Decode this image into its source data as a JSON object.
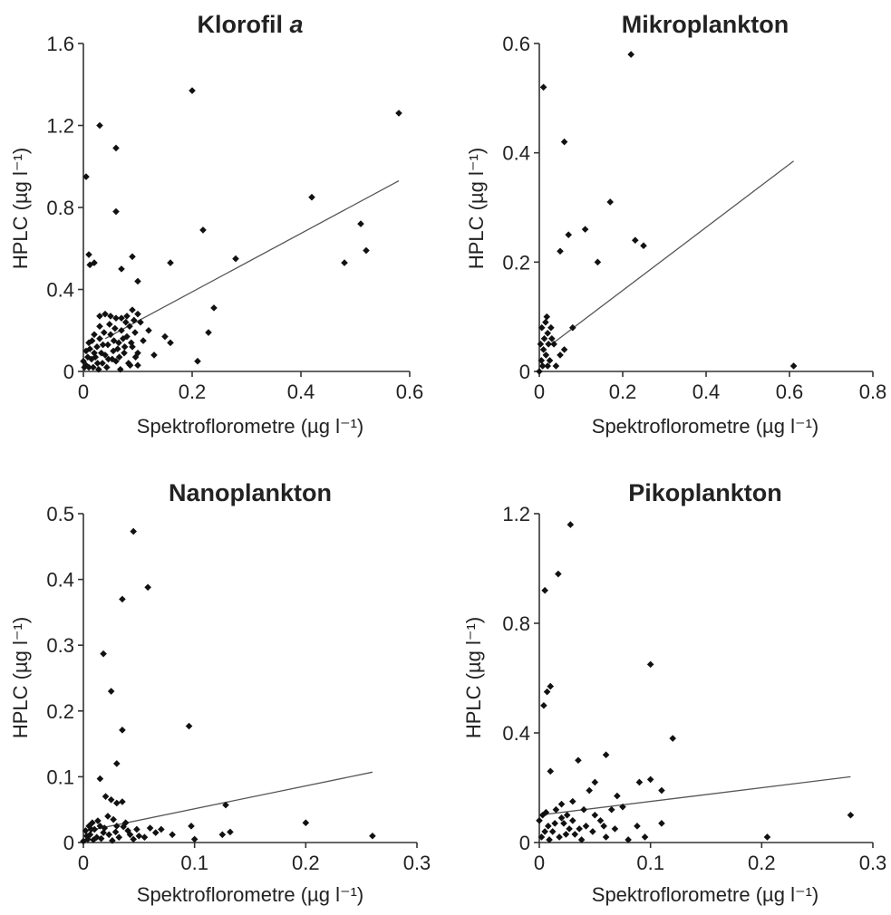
{
  "chart_data": [
    {
      "type": "scatter",
      "title": "Klorofil a",
      "title_main": "Klorofil",
      "title_italic": "a",
      "xlabel": "Spektroflorometre (µg l⁻¹)",
      "ylabel": "HPLC (µg l⁻¹)",
      "xlim": [
        0,
        0.6
      ],
      "ylim": [
        0,
        1.6
      ],
      "xticks": [
        0,
        0.2,
        0.4,
        0.6
      ],
      "yticks": [
        0,
        0.4,
        0.8,
        1.2,
        1.6
      ],
      "xtick_labels": [
        "0",
        "0.2",
        "0.4",
        "0.6"
      ],
      "ytick_labels": [
        "0",
        "0.4",
        "0.8",
        "1.2",
        "1.6"
      ],
      "grid": false,
      "regression_line": [
        [
          0.04,
          0.16
        ],
        [
          0.58,
          0.93
        ]
      ],
      "points": [
        [
          0.005,
          0.95
        ],
        [
          0.01,
          0.57
        ],
        [
          0.012,
          0.52
        ],
        [
          0.02,
          0.53
        ],
        [
          0.03,
          1.2
        ],
        [
          0.06,
          1.09
        ],
        [
          0.06,
          0.78
        ],
        [
          0.07,
          0.5
        ],
        [
          0.09,
          0.56
        ],
        [
          0.1,
          0.44
        ],
        [
          0.2,
          1.37
        ],
        [
          0.22,
          0.69
        ],
        [
          0.16,
          0.53
        ],
        [
          0.28,
          0.55
        ],
        [
          0.42,
          0.85
        ],
        [
          0.51,
          0.72
        ],
        [
          0.52,
          0.59
        ],
        [
          0.48,
          0.53
        ],
        [
          0.58,
          1.26
        ],
        [
          0.24,
          0.31
        ],
        [
          0.23,
          0.19
        ],
        [
          0.21,
          0.05
        ],
        [
          0.15,
          0.17
        ],
        [
          0.16,
          0.14
        ],
        [
          0.12,
          0.2
        ],
        [
          0.13,
          0.08
        ],
        [
          0.1,
          0.28
        ],
        [
          0.09,
          0.3
        ],
        [
          0.08,
          0.27
        ],
        [
          0.07,
          0.26
        ],
        [
          0.06,
          0.26
        ],
        [
          0.05,
          0.27
        ],
        [
          0.04,
          0.28
        ],
        [
          0.03,
          0.27
        ],
        [
          0.03,
          0.22
        ],
        [
          0.02,
          0.18
        ],
        [
          0.01,
          0.14
        ],
        [
          0.005,
          0.1
        ],
        [
          0.0,
          0.05
        ],
        [
          0.002,
          0.02
        ],
        [
          0.01,
          0.02
        ],
        [
          0.015,
          0.06
        ],
        [
          0.02,
          0.09
        ],
        [
          0.025,
          0.12
        ],
        [
          0.03,
          0.16
        ],
        [
          0.035,
          0.04
        ],
        [
          0.04,
          0.08
        ],
        [
          0.045,
          0.13
        ],
        [
          0.05,
          0.18
        ],
        [
          0.055,
          0.1
        ],
        [
          0.06,
          0.05
        ],
        [
          0.065,
          0.14
        ],
        [
          0.07,
          0.2
        ],
        [
          0.075,
          0.09
        ],
        [
          0.08,
          0.17
        ],
        [
          0.085,
          0.22
        ],
        [
          0.09,
          0.12
        ],
        [
          0.095,
          0.19
        ],
        [
          0.1,
          0.03
        ],
        [
          0.105,
          0.24
        ],
        [
          0.11,
          0.15
        ],
        [
          0.005,
          0.03
        ],
        [
          0.012,
          0.11
        ],
        [
          0.018,
          0.02
        ],
        [
          0.022,
          0.07
        ],
        [
          0.028,
          0.01
        ],
        [
          0.033,
          0.09
        ],
        [
          0.038,
          0.19
        ],
        [
          0.043,
          0.02
        ],
        [
          0.048,
          0.23
        ],
        [
          0.053,
          0.06
        ],
        [
          0.058,
          0.21
        ],
        [
          0.063,
          0.11
        ],
        [
          0.068,
          0.01
        ],
        [
          0.073,
          0.16
        ],
        [
          0.078,
          0.24
        ],
        [
          0.083,
          0.04
        ],
        [
          0.088,
          0.14
        ],
        [
          0.093,
          0.25
        ],
        [
          0.1,
          0.09
        ],
        [
          0.008,
          0.07
        ],
        [
          0.016,
          0.15
        ],
        [
          0.026,
          0.04
        ],
        [
          0.036,
          0.13
        ],
        [
          0.046,
          0.06
        ],
        [
          0.056,
          0.15
        ],
        [
          0.066,
          0.07
        ],
        [
          0.076,
          0.12
        ],
        [
          0.086,
          0.03
        ],
        [
          0.096,
          0.07
        ]
      ]
    },
    {
      "type": "scatter",
      "title": "Mikroplankton",
      "xlabel": "Spektroflorometre (µg l⁻¹)",
      "ylabel": "HPLC (µg l⁻¹)",
      "xlim": [
        0,
        0.8
      ],
      "ylim": [
        0,
        0.6
      ],
      "xticks": [
        0,
        0.2,
        0.4,
        0.6,
        0.8
      ],
      "yticks": [
        0,
        0.2,
        0.4,
        0.6
      ],
      "xtick_labels": [
        "0",
        "0.2",
        "0.4",
        "0.6",
        "0.8"
      ],
      "ytick_labels": [
        "0",
        "0.2",
        "0.4",
        "0.6"
      ],
      "grid": false,
      "regression_line": [
        [
          0.03,
          0.05
        ],
        [
          0.61,
          0.385
        ]
      ],
      "points": [
        [
          0.01,
          0.52
        ],
        [
          0.22,
          0.58
        ],
        [
          0.06,
          0.42
        ],
        [
          0.17,
          0.31
        ],
        [
          0.11,
          0.26
        ],
        [
          0.07,
          0.25
        ],
        [
          0.05,
          0.22
        ],
        [
          0.23,
          0.24
        ],
        [
          0.25,
          0.23
        ],
        [
          0.14,
          0.2
        ],
        [
          0.61,
          0.01
        ],
        [
          0.08,
          0.08
        ],
        [
          0.06,
          0.04
        ],
        [
          0.05,
          0.03
        ],
        [
          0.04,
          0.01
        ],
        [
          0.0,
          0.0
        ],
        [
          0.005,
          0.02
        ],
        [
          0.01,
          0.04
        ],
        [
          0.012,
          0.06
        ],
        [
          0.015,
          0.09
        ],
        [
          0.018,
          0.1
        ],
        [
          0.02,
          0.07
        ],
        [
          0.022,
          0.05
        ],
        [
          0.025,
          0.02
        ],
        [
          0.028,
          0.08
        ],
        [
          0.03,
          0.06
        ],
        [
          0.008,
          0.01
        ],
        [
          0.003,
          0.05
        ],
        [
          0.006,
          0.08
        ],
        [
          0.016,
          0.03
        ],
        [
          0.035,
          0.05
        ],
        [
          0.02,
          0.01
        ]
      ]
    },
    {
      "type": "scatter",
      "title": "Nanoplankton",
      "xlabel": "Spektroflorometre (µg l⁻¹)",
      "ylabel": "HPLC (µg l⁻¹)",
      "xlim": [
        0,
        0.3
      ],
      "ylim": [
        0,
        0.5
      ],
      "xticks": [
        0,
        0.1,
        0.2,
        0.3
      ],
      "yticks": [
        0,
        0.1,
        0.2,
        0.3,
        0.4,
        0.5
      ],
      "xtick_labels": [
        "0",
        "0.1",
        "0.2",
        "0.3"
      ],
      "ytick_labels": [
        "0",
        "0.1",
        "0.2",
        "0.3",
        "0.4",
        "0.5"
      ],
      "grid": false,
      "regression_line": [
        [
          0.01,
          0.02
        ],
        [
          0.26,
          0.107
        ]
      ],
      "points": [
        [
          0.045,
          0.473
        ],
        [
          0.058,
          0.388
        ],
        [
          0.035,
          0.37
        ],
        [
          0.018,
          0.287
        ],
        [
          0.025,
          0.23
        ],
        [
          0.035,
          0.171
        ],
        [
          0.03,
          0.12
        ],
        [
          0.095,
          0.177
        ],
        [
          0.015,
          0.097
        ],
        [
          0.02,
          0.07
        ],
        [
          0.025,
          0.065
        ],
        [
          0.03,
          0.06
        ],
        [
          0.035,
          0.062
        ],
        [
          0.128,
          0.057
        ],
        [
          0.2,
          0.03
        ],
        [
          0.26,
          0.01
        ],
        [
          0.097,
          0.025
        ],
        [
          0.125,
          0.012
        ],
        [
          0.132,
          0.016
        ],
        [
          0.07,
          0.02
        ],
        [
          0.06,
          0.022
        ],
        [
          0.05,
          0.01
        ],
        [
          0.045,
          0.005
        ],
        [
          0.04,
          0.018
        ],
        [
          0.038,
          0.03
        ],
        [
          0.03,
          0.025
        ],
        [
          0.027,
          0.035
        ],
        [
          0.022,
          0.04
        ],
        [
          0.018,
          0.015
        ],
        [
          0.015,
          0.025
        ],
        [
          0.012,
          0.008
        ],
        [
          0.01,
          0.02
        ],
        [
          0.008,
          0.03
        ],
        [
          0.006,
          0.012
        ],
        [
          0.004,
          0.005
        ],
        [
          0.002,
          0.018
        ],
        [
          0.0,
          0.002
        ],
        [
          0.005,
          0.025
        ],
        [
          0.009,
          0.004
        ],
        [
          0.013,
          0.033
        ],
        [
          0.016,
          0.006
        ],
        [
          0.019,
          0.022
        ],
        [
          0.023,
          0.012
        ],
        [
          0.026,
          0.003
        ],
        [
          0.029,
          0.016
        ],
        [
          0.032,
          0.008
        ],
        [
          0.036,
          0.024
        ],
        [
          0.042,
          0.012
        ],
        [
          0.048,
          0.02
        ],
        [
          0.055,
          0.008
        ],
        [
          0.065,
          0.015
        ],
        [
          0.08,
          0.012
        ],
        [
          0.1,
          0.005
        ],
        [
          0.003,
          0.01
        ],
        [
          0.007,
          0.02
        ]
      ]
    },
    {
      "type": "scatter",
      "title": "Pikoplankton",
      "xlabel": "Spektroflorometre (µg l⁻¹)",
      "ylabel": "HPLC (µg l⁻¹)",
      "xlim": [
        0,
        0.3
      ],
      "ylim": [
        0,
        1.2
      ],
      "xticks": [
        0,
        0.1,
        0.2,
        0.3
      ],
      "yticks": [
        0,
        0.4,
        0.8,
        1.2
      ],
      "xtick_labels": [
        "0",
        "0.1",
        "0.2",
        "0.3"
      ],
      "ytick_labels": [
        "0",
        "0.4",
        "0.8",
        "1.2"
      ],
      "grid": false,
      "regression_line": [
        [
          0.0,
          0.1
        ],
        [
          0.28,
          0.24
        ]
      ],
      "points": [
        [
          0.028,
          1.16
        ],
        [
          0.017,
          0.98
        ],
        [
          0.005,
          0.92
        ],
        [
          0.01,
          0.57
        ],
        [
          0.007,
          0.55
        ],
        [
          0.004,
          0.5
        ],
        [
          0.1,
          0.65
        ],
        [
          0.12,
          0.38
        ],
        [
          0.06,
          0.32
        ],
        [
          0.035,
          0.3
        ],
        [
          0.01,
          0.26
        ],
        [
          0.1,
          0.23
        ],
        [
          0.09,
          0.22
        ],
        [
          0.05,
          0.22
        ],
        [
          0.045,
          0.19
        ],
        [
          0.11,
          0.19
        ],
        [
          0.07,
          0.17
        ],
        [
          0.03,
          0.15
        ],
        [
          0.02,
          0.14
        ],
        [
          0.075,
          0.13
        ],
        [
          0.065,
          0.12
        ],
        [
          0.28,
          0.1
        ],
        [
          0.04,
          0.12
        ],
        [
          0.015,
          0.12
        ],
        [
          0.025,
          0.1
        ],
        [
          0.006,
          0.11
        ],
        [
          0.003,
          0.1
        ],
        [
          0.0,
          0.08
        ],
        [
          0.008,
          0.06
        ],
        [
          0.012,
          0.04
        ],
        [
          0.018,
          0.02
        ],
        [
          0.022,
          0.07
        ],
        [
          0.027,
          0.05
        ],
        [
          0.032,
          0.03
        ],
        [
          0.038,
          0.01
        ],
        [
          0.042,
          0.06
        ],
        [
          0.048,
          0.04
        ],
        [
          0.055,
          0.08
        ],
        [
          0.06,
          0.02
        ],
        [
          0.068,
          0.05
        ],
        [
          0.08,
          0.01
        ],
        [
          0.088,
          0.06
        ],
        [
          0.095,
          0.02
        ],
        [
          0.11,
          0.07
        ],
        [
          0.205,
          0.02
        ],
        [
          0.002,
          0.02
        ],
        [
          0.005,
          0.04
        ],
        [
          0.009,
          0.01
        ],
        [
          0.014,
          0.07
        ],
        [
          0.02,
          0.09
        ],
        [
          0.024,
          0.03
        ],
        [
          0.03,
          0.08
        ],
        [
          0.036,
          0.05
        ],
        [
          0.05,
          0.1
        ],
        [
          0.058,
          0.06
        ]
      ]
    }
  ]
}
